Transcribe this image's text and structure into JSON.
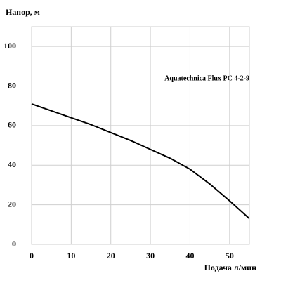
{
  "chart_data": {
    "type": "line",
    "y_label": "Напор, м",
    "x_label": "Подача л/мин",
    "annotation": "Aquatechnica Flux PC 4-2-9",
    "series": [
      {
        "name": "Aquatechnica Flux PC 4-2-9",
        "color": "#000000",
        "x": [
          0,
          5,
          10,
          15,
          20,
          25,
          30,
          35,
          40,
          45,
          50,
          55
        ],
        "values": [
          71,
          67.5,
          64,
          60.5,
          56.5,
          52.5,
          48,
          43.5,
          38,
          30.5,
          22,
          13
        ]
      }
    ],
    "xlim": [
      0,
      55
    ],
    "ylim": [
      0,
      110
    ],
    "xticks": [
      0,
      10,
      20,
      30,
      40,
      50
    ],
    "yticks": [
      0,
      20,
      40,
      60,
      80,
      100
    ],
    "grid": true
  }
}
